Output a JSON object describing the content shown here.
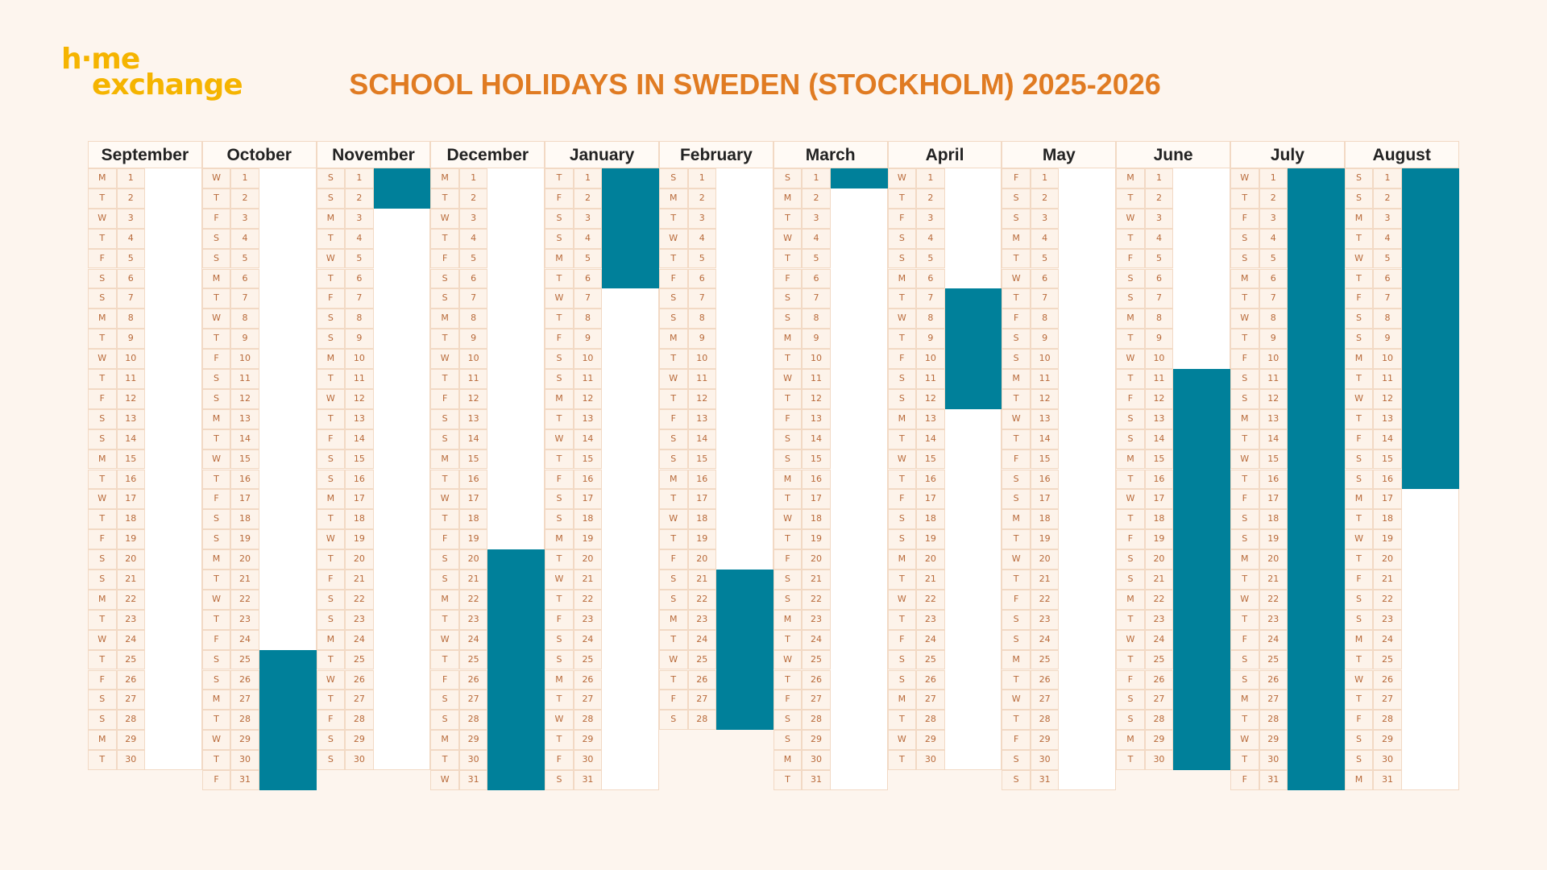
{
  "logo": {
    "line1": "h·me",
    "line2": "exchange"
  },
  "title": "SCHOOL HOLIDAYS IN SWEDEN (STOCKHOLM) 2025-2026",
  "months": [
    {
      "name": "September",
      "weekdays": [
        "M",
        "T",
        "W",
        "T",
        "F",
        "S",
        "S",
        "M",
        "T",
        "W",
        "T",
        "F",
        "S",
        "S",
        "M",
        "T",
        "W",
        "T",
        "F",
        "S",
        "S",
        "M",
        "T",
        "W",
        "T",
        "F",
        "S",
        "S",
        "M",
        "T"
      ],
      "days": [
        1,
        2,
        3,
        4,
        5,
        6,
        7,
        8,
        9,
        10,
        11,
        12,
        13,
        14,
        15,
        16,
        17,
        18,
        19,
        20,
        21,
        22,
        23,
        24,
        25,
        26,
        27,
        28,
        29,
        30
      ],
      "holidays": []
    },
    {
      "name": "October",
      "weekdays": [
        "W",
        "T",
        "F",
        "S",
        "S",
        "M",
        "T",
        "W",
        "T",
        "F",
        "S",
        "S",
        "M",
        "T",
        "W",
        "T",
        "F",
        "S",
        "S",
        "M",
        "T",
        "W",
        "T",
        "F",
        "S",
        "S",
        "M",
        "T",
        "W",
        "T",
        "F"
      ],
      "days": [
        1,
        2,
        3,
        4,
        5,
        6,
        7,
        8,
        9,
        10,
        11,
        12,
        13,
        14,
        15,
        16,
        17,
        18,
        19,
        20,
        21,
        22,
        23,
        24,
        25,
        26,
        27,
        28,
        29,
        30,
        31
      ],
      "holidays": [
        [
          25,
          31
        ]
      ]
    },
    {
      "name": "November",
      "weekdays": [
        "S",
        "S",
        "M",
        "T",
        "W",
        "T",
        "F",
        "S",
        "S",
        "M",
        "T",
        "W",
        "T",
        "F",
        "S",
        "S",
        "M",
        "T",
        "W",
        "T",
        "F",
        "S",
        "S",
        "M",
        "T",
        "W",
        "T",
        "F",
        "S",
        "S"
      ],
      "days": [
        1,
        2,
        3,
        4,
        5,
        6,
        7,
        8,
        9,
        10,
        11,
        12,
        13,
        14,
        15,
        16,
        17,
        18,
        19,
        20,
        21,
        22,
        23,
        24,
        25,
        26,
        27,
        28,
        29,
        30
      ],
      "holidays": [
        [
          1,
          2
        ]
      ]
    },
    {
      "name": "December",
      "weekdays": [
        "M",
        "T",
        "W",
        "T",
        "F",
        "S",
        "S",
        "M",
        "T",
        "W",
        "T",
        "F",
        "S",
        "S",
        "M",
        "T",
        "W",
        "T",
        "F",
        "S",
        "S",
        "M",
        "T",
        "W",
        "T",
        "F",
        "S",
        "S",
        "M",
        "T",
        "W"
      ],
      "days": [
        1,
        2,
        3,
        4,
        5,
        6,
        7,
        8,
        9,
        10,
        11,
        12,
        13,
        14,
        15,
        16,
        17,
        18,
        19,
        20,
        21,
        22,
        23,
        24,
        25,
        26,
        27,
        28,
        29,
        30,
        31
      ],
      "holidays": [
        [
          20,
          31
        ]
      ]
    },
    {
      "name": "January",
      "weekdays": [
        "T",
        "F",
        "S",
        "S",
        "M",
        "T",
        "W",
        "T",
        "F",
        "S",
        "S",
        "M",
        "T",
        "W",
        "T",
        "F",
        "S",
        "S",
        "M",
        "T",
        "W",
        "T",
        "F",
        "S",
        "S",
        "M",
        "T",
        "W",
        "T",
        "F",
        "S"
      ],
      "days": [
        1,
        2,
        3,
        4,
        5,
        6,
        7,
        8,
        9,
        10,
        11,
        12,
        13,
        14,
        15,
        16,
        17,
        18,
        19,
        20,
        21,
        22,
        23,
        24,
        25,
        26,
        27,
        28,
        29,
        30,
        31
      ],
      "holidays": [
        [
          1,
          6
        ]
      ]
    },
    {
      "name": "February",
      "weekdays": [
        "S",
        "M",
        "T",
        "W",
        "T",
        "F",
        "S",
        "S",
        "M",
        "T",
        "W",
        "T",
        "F",
        "S",
        "S",
        "M",
        "T",
        "W",
        "T",
        "F",
        "S",
        "S",
        "M",
        "T",
        "W",
        "T",
        "F",
        "S"
      ],
      "days": [
        1,
        2,
        3,
        4,
        5,
        6,
        7,
        8,
        9,
        10,
        11,
        12,
        13,
        14,
        15,
        16,
        17,
        18,
        19,
        20,
        21,
        22,
        23,
        24,
        25,
        26,
        27,
        28
      ],
      "holidays": [
        [
          21,
          28
        ]
      ]
    },
    {
      "name": "March",
      "weekdays": [
        "S",
        "M",
        "T",
        "W",
        "T",
        "F",
        "S",
        "S",
        "M",
        "T",
        "W",
        "T",
        "F",
        "S",
        "S",
        "M",
        "T",
        "W",
        "T",
        "F",
        "S",
        "S",
        "M",
        "T",
        "W",
        "T",
        "F",
        "S",
        "S",
        "M",
        "T"
      ],
      "days": [
        1,
        2,
        3,
        4,
        5,
        6,
        7,
        8,
        9,
        10,
        11,
        12,
        13,
        14,
        15,
        16,
        17,
        18,
        19,
        20,
        21,
        22,
        23,
        24,
        25,
        26,
        27,
        28,
        29,
        30,
        31
      ],
      "holidays": [
        [
          1,
          1
        ]
      ]
    },
    {
      "name": "April",
      "weekdays": [
        "W",
        "T",
        "F",
        "S",
        "S",
        "M",
        "T",
        "W",
        "T",
        "F",
        "S",
        "S",
        "M",
        "T",
        "W",
        "T",
        "F",
        "S",
        "S",
        "M",
        "T",
        "W",
        "T",
        "F",
        "S",
        "S",
        "M",
        "T",
        "W",
        "T"
      ],
      "days": [
        1,
        2,
        3,
        4,
        5,
        6,
        7,
        8,
        9,
        10,
        11,
        12,
        13,
        14,
        15,
        16,
        17,
        18,
        19,
        20,
        21,
        22,
        23,
        24,
        25,
        26,
        27,
        28,
        29,
        30
      ],
      "holidays": [
        [
          7,
          12
        ]
      ]
    },
    {
      "name": "May",
      "weekdays": [
        "F",
        "S",
        "S",
        "M",
        "T",
        "W",
        "T",
        "F",
        "S",
        "S",
        "M",
        "T",
        "W",
        "T",
        "F",
        "S",
        "S",
        "M",
        "T",
        "W",
        "T",
        "F",
        "S",
        "S",
        "M",
        "T",
        "W",
        "T",
        "F",
        "S",
        "S"
      ],
      "days": [
        1,
        2,
        3,
        4,
        5,
        6,
        7,
        8,
        9,
        10,
        11,
        12,
        13,
        14,
        15,
        16,
        17,
        18,
        19,
        20,
        21,
        22,
        23,
        24,
        25,
        26,
        27,
        28,
        29,
        30,
        31
      ],
      "holidays": []
    },
    {
      "name": "June",
      "weekdays": [
        "M",
        "T",
        "W",
        "T",
        "F",
        "S",
        "S",
        "M",
        "T",
        "W",
        "T",
        "F",
        "S",
        "S",
        "M",
        "T",
        "W",
        "T",
        "F",
        "S",
        "S",
        "M",
        "T",
        "W",
        "T",
        "F",
        "S",
        "S",
        "M",
        "T"
      ],
      "days": [
        1,
        2,
        3,
        4,
        5,
        6,
        7,
        8,
        9,
        10,
        11,
        12,
        13,
        14,
        15,
        16,
        17,
        18,
        19,
        20,
        21,
        22,
        23,
        24,
        25,
        26,
        27,
        28,
        29,
        30
      ],
      "holidays": [
        [
          11,
          30
        ]
      ]
    },
    {
      "name": "July",
      "weekdays": [
        "W",
        "T",
        "F",
        "S",
        "S",
        "M",
        "T",
        "W",
        "T",
        "F",
        "S",
        "S",
        "M",
        "T",
        "W",
        "T",
        "F",
        "S",
        "S",
        "M",
        "T",
        "W",
        "T",
        "F",
        "S",
        "S",
        "M",
        "T",
        "W",
        "T",
        "F"
      ],
      "days": [
        1,
        2,
        3,
        4,
        5,
        6,
        7,
        8,
        9,
        10,
        11,
        12,
        13,
        14,
        15,
        16,
        17,
        18,
        19,
        20,
        21,
        22,
        23,
        24,
        25,
        26,
        27,
        28,
        29,
        30,
        31
      ],
      "holidays": [
        [
          1,
          31
        ]
      ]
    },
    {
      "name": "August",
      "weekdays": [
        "S",
        "S",
        "M",
        "T",
        "W",
        "T",
        "F",
        "S",
        "S",
        "M",
        "T",
        "W",
        "T",
        "F",
        "S",
        "S",
        "M",
        "T",
        "W",
        "T",
        "F",
        "S",
        "S",
        "M",
        "T",
        "W",
        "T",
        "F",
        "S",
        "S",
        "M"
      ],
      "days": [
        1,
        2,
        3,
        4,
        5,
        6,
        7,
        8,
        9,
        10,
        11,
        12,
        13,
        14,
        15,
        16,
        17,
        18,
        19,
        20,
        21,
        22,
        23,
        24,
        25,
        26,
        27,
        28,
        29,
        30,
        31
      ],
      "holidays": [
        [
          1,
          16
        ]
      ]
    }
  ]
}
